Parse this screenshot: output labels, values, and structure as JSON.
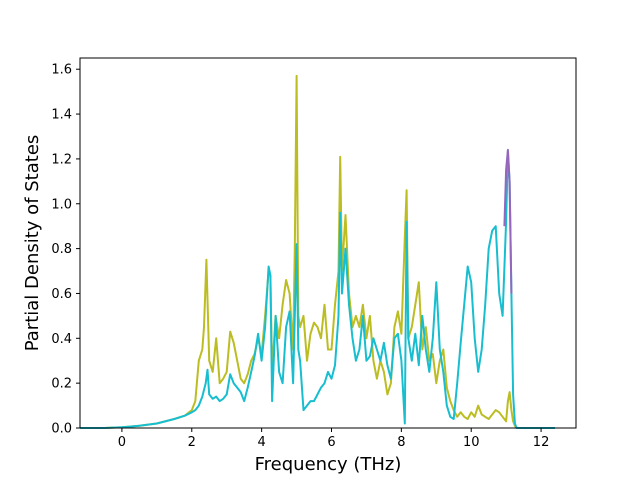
{
  "chart_data": {
    "type": "line",
    "title": "",
    "xlabel": "Frequency (THz)",
    "ylabel": "Partial Density of States",
    "xlim": [
      -1.2,
      13.0
    ],
    "ylim": [
      0.0,
      1.65
    ],
    "xticks": [
      0,
      2,
      4,
      6,
      8,
      10,
      12
    ],
    "yticks": [
      0.0,
      0.2,
      0.4,
      0.6,
      0.8,
      1.0,
      1.2,
      1.4,
      1.6
    ],
    "xtick_labels": [
      "0",
      "2",
      "4",
      "6",
      "8",
      "10",
      "12"
    ],
    "ytick_labels": [
      "0.0",
      "0.2",
      "0.4",
      "0.6",
      "0.8",
      "1.0",
      "1.2",
      "1.4",
      "1.6"
    ],
    "grid": false,
    "legend": "none",
    "series": [
      {
        "color": "#bcbd22",
        "x": [
          -1.2,
          -0.5,
          0.0,
          0.5,
          1.0,
          1.5,
          1.8,
          2.0,
          2.1,
          2.2,
          2.3,
          2.35,
          2.42,
          2.5,
          2.6,
          2.7,
          2.8,
          2.9,
          3.0,
          3.1,
          3.2,
          3.3,
          3.4,
          3.5,
          3.6,
          3.7,
          3.8,
          3.9,
          4.0,
          4.1,
          4.2,
          4.25,
          4.3,
          4.4,
          4.5,
          4.6,
          4.7,
          4.8,
          4.9,
          4.95,
          5.0,
          5.05,
          5.1,
          5.2,
          5.3,
          5.4,
          5.5,
          5.6,
          5.7,
          5.8,
          5.9,
          6.0,
          6.1,
          6.2,
          6.25,
          6.3,
          6.4,
          6.5,
          6.6,
          6.7,
          6.8,
          6.9,
          7.0,
          7.1,
          7.2,
          7.3,
          7.4,
          7.5,
          7.6,
          7.7,
          7.8,
          7.9,
          8.0,
          8.1,
          8.15,
          8.2,
          8.3,
          8.4,
          8.5,
          8.6,
          8.7,
          8.8,
          8.9,
          9.0,
          9.1,
          9.2,
          9.3,
          9.4,
          9.5,
          9.6,
          9.7,
          9.8,
          9.9,
          10.0,
          10.1,
          10.2,
          10.3,
          10.4,
          10.5,
          10.6,
          10.7,
          10.8,
          10.9,
          11.0,
          11.05,
          11.1,
          11.15,
          11.2,
          11.25,
          11.3,
          11.5,
          12.0,
          12.4
        ],
        "y": [
          0.0,
          0.0,
          0.003,
          0.01,
          0.02,
          0.04,
          0.055,
          0.08,
          0.12,
          0.3,
          0.35,
          0.45,
          0.75,
          0.3,
          0.25,
          0.4,
          0.2,
          0.22,
          0.25,
          0.43,
          0.38,
          0.3,
          0.22,
          0.2,
          0.24,
          0.3,
          0.33,
          0.4,
          0.33,
          0.5,
          0.7,
          0.68,
          0.25,
          0.5,
          0.4,
          0.55,
          0.66,
          0.6,
          0.35,
          0.8,
          1.57,
          0.5,
          0.45,
          0.5,
          0.3,
          0.42,
          0.47,
          0.45,
          0.4,
          0.55,
          0.35,
          0.35,
          0.55,
          0.7,
          1.21,
          0.7,
          0.95,
          0.6,
          0.45,
          0.5,
          0.45,
          0.55,
          0.4,
          0.5,
          0.3,
          0.22,
          0.3,
          0.25,
          0.15,
          0.2,
          0.45,
          0.52,
          0.42,
          0.85,
          1.06,
          0.4,
          0.45,
          0.55,
          0.65,
          0.35,
          0.45,
          0.3,
          0.33,
          0.2,
          0.3,
          0.35,
          0.18,
          0.12,
          0.08,
          0.05,
          0.07,
          0.05,
          0.04,
          0.07,
          0.05,
          0.1,
          0.06,
          0.05,
          0.04,
          0.06,
          0.08,
          0.07,
          0.05,
          0.03,
          0.12,
          0.16,
          0.08,
          0.03,
          0.01,
          0.0,
          0.0,
          0.0,
          0.0
        ]
      },
      {
        "color": "#17becf",
        "x": [
          -1.2,
          -0.5,
          0.0,
          0.5,
          1.0,
          1.5,
          1.8,
          2.0,
          2.1,
          2.2,
          2.3,
          2.4,
          2.45,
          2.5,
          2.6,
          2.7,
          2.8,
          2.9,
          3.0,
          3.1,
          3.2,
          3.3,
          3.4,
          3.5,
          3.6,
          3.7,
          3.8,
          3.9,
          4.0,
          4.1,
          4.2,
          4.25,
          4.3,
          4.4,
          4.5,
          4.6,
          4.7,
          4.8,
          4.9,
          4.95,
          5.0,
          5.05,
          5.1,
          5.2,
          5.3,
          5.4,
          5.5,
          5.6,
          5.7,
          5.8,
          5.9,
          6.0,
          6.1,
          6.2,
          6.25,
          6.3,
          6.4,
          6.5,
          6.6,
          6.7,
          6.8,
          6.9,
          7.0,
          7.1,
          7.2,
          7.3,
          7.4,
          7.5,
          7.6,
          7.7,
          7.8,
          7.9,
          8.0,
          8.1,
          8.15,
          8.2,
          8.3,
          8.4,
          8.5,
          8.6,
          8.7,
          8.8,
          8.9,
          9.0,
          9.1,
          9.2,
          9.3,
          9.4,
          9.5,
          9.6,
          9.7,
          9.8,
          9.9,
          10.0,
          10.1,
          10.2,
          10.3,
          10.4,
          10.5,
          10.6,
          10.7,
          10.8,
          10.9,
          11.0,
          11.05,
          11.1,
          11.15,
          11.2,
          11.25,
          11.3,
          11.5,
          12.0,
          12.4
        ],
        "y": [
          0.0,
          0.0,
          0.003,
          0.01,
          0.02,
          0.04,
          0.055,
          0.07,
          0.08,
          0.1,
          0.14,
          0.2,
          0.26,
          0.15,
          0.13,
          0.14,
          0.12,
          0.13,
          0.15,
          0.24,
          0.2,
          0.18,
          0.16,
          0.12,
          0.18,
          0.25,
          0.32,
          0.42,
          0.3,
          0.45,
          0.72,
          0.68,
          0.12,
          0.5,
          0.25,
          0.2,
          0.45,
          0.52,
          0.2,
          0.5,
          0.82,
          0.35,
          0.3,
          0.08,
          0.1,
          0.12,
          0.12,
          0.15,
          0.18,
          0.2,
          0.25,
          0.22,
          0.28,
          0.5,
          0.96,
          0.6,
          0.8,
          0.55,
          0.4,
          0.3,
          0.35,
          0.5,
          0.3,
          0.32,
          0.4,
          0.35,
          0.3,
          0.38,
          0.28,
          0.22,
          0.4,
          0.42,
          0.3,
          0.02,
          0.92,
          0.4,
          0.3,
          0.42,
          0.28,
          0.5,
          0.35,
          0.25,
          0.4,
          0.65,
          0.35,
          0.25,
          0.1,
          0.05,
          0.04,
          0.2,
          0.38,
          0.55,
          0.72,
          0.65,
          0.4,
          0.25,
          0.35,
          0.55,
          0.8,
          0.88,
          0.9,
          0.6,
          0.5,
          0.92,
          1.23,
          1.1,
          0.6,
          0.15,
          0.02,
          0.0,
          0.0,
          0.0,
          0.0
        ]
      },
      {
        "color": "#9467bd",
        "x": [
          10.95,
          11.0,
          11.05,
          11.1,
          11.15
        ],
        "y": [
          0.9,
          1.15,
          1.24,
          1.1,
          0.6
        ]
      }
    ]
  }
}
